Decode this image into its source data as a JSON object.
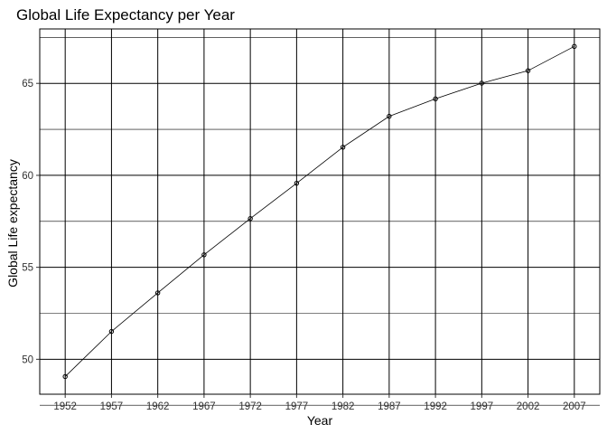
{
  "chart_data": {
    "type": "line",
    "title": "Global Life Expectancy per Year",
    "xlabel": "Year",
    "ylabel": "Global Life expectancy",
    "x": [
      1952,
      1957,
      1962,
      1967,
      1972,
      1977,
      1982,
      1987,
      1992,
      1997,
      2002,
      2007
    ],
    "series": [
      {
        "values": [
          49.06,
          51.51,
          53.61,
          55.68,
          57.65,
          59.57,
          61.53,
          63.21,
          64.16,
          65.01,
          65.69,
          67.01
        ],
        "color": "#000000",
        "marker": "open-circle"
      }
    ],
    "xlim": [
      1949.25,
      2009.75
    ],
    "ylim": [
      48.1,
      67.96
    ],
    "x_ticks": [
      1952,
      1957,
      1962,
      1967,
      1972,
      1977,
      1982,
      1987,
      1992,
      1997,
      2002,
      2007
    ],
    "x_tick_labels": [
      "1952",
      "1957",
      "1962",
      "1967",
      "1972",
      "1977",
      "1982",
      "1987",
      "1992",
      "1997",
      "2002",
      "2007"
    ],
    "y_ticks": [
      50,
      55,
      60,
      65
    ],
    "y_tick_labels": [
      "50",
      "55",
      "60",
      "65"
    ],
    "y_minor_ticks": [
      47.5,
      52.5,
      57.5,
      62.5,
      67.5
    ],
    "grid": true,
    "background": "#ffffff",
    "grid_color": "#000000"
  }
}
